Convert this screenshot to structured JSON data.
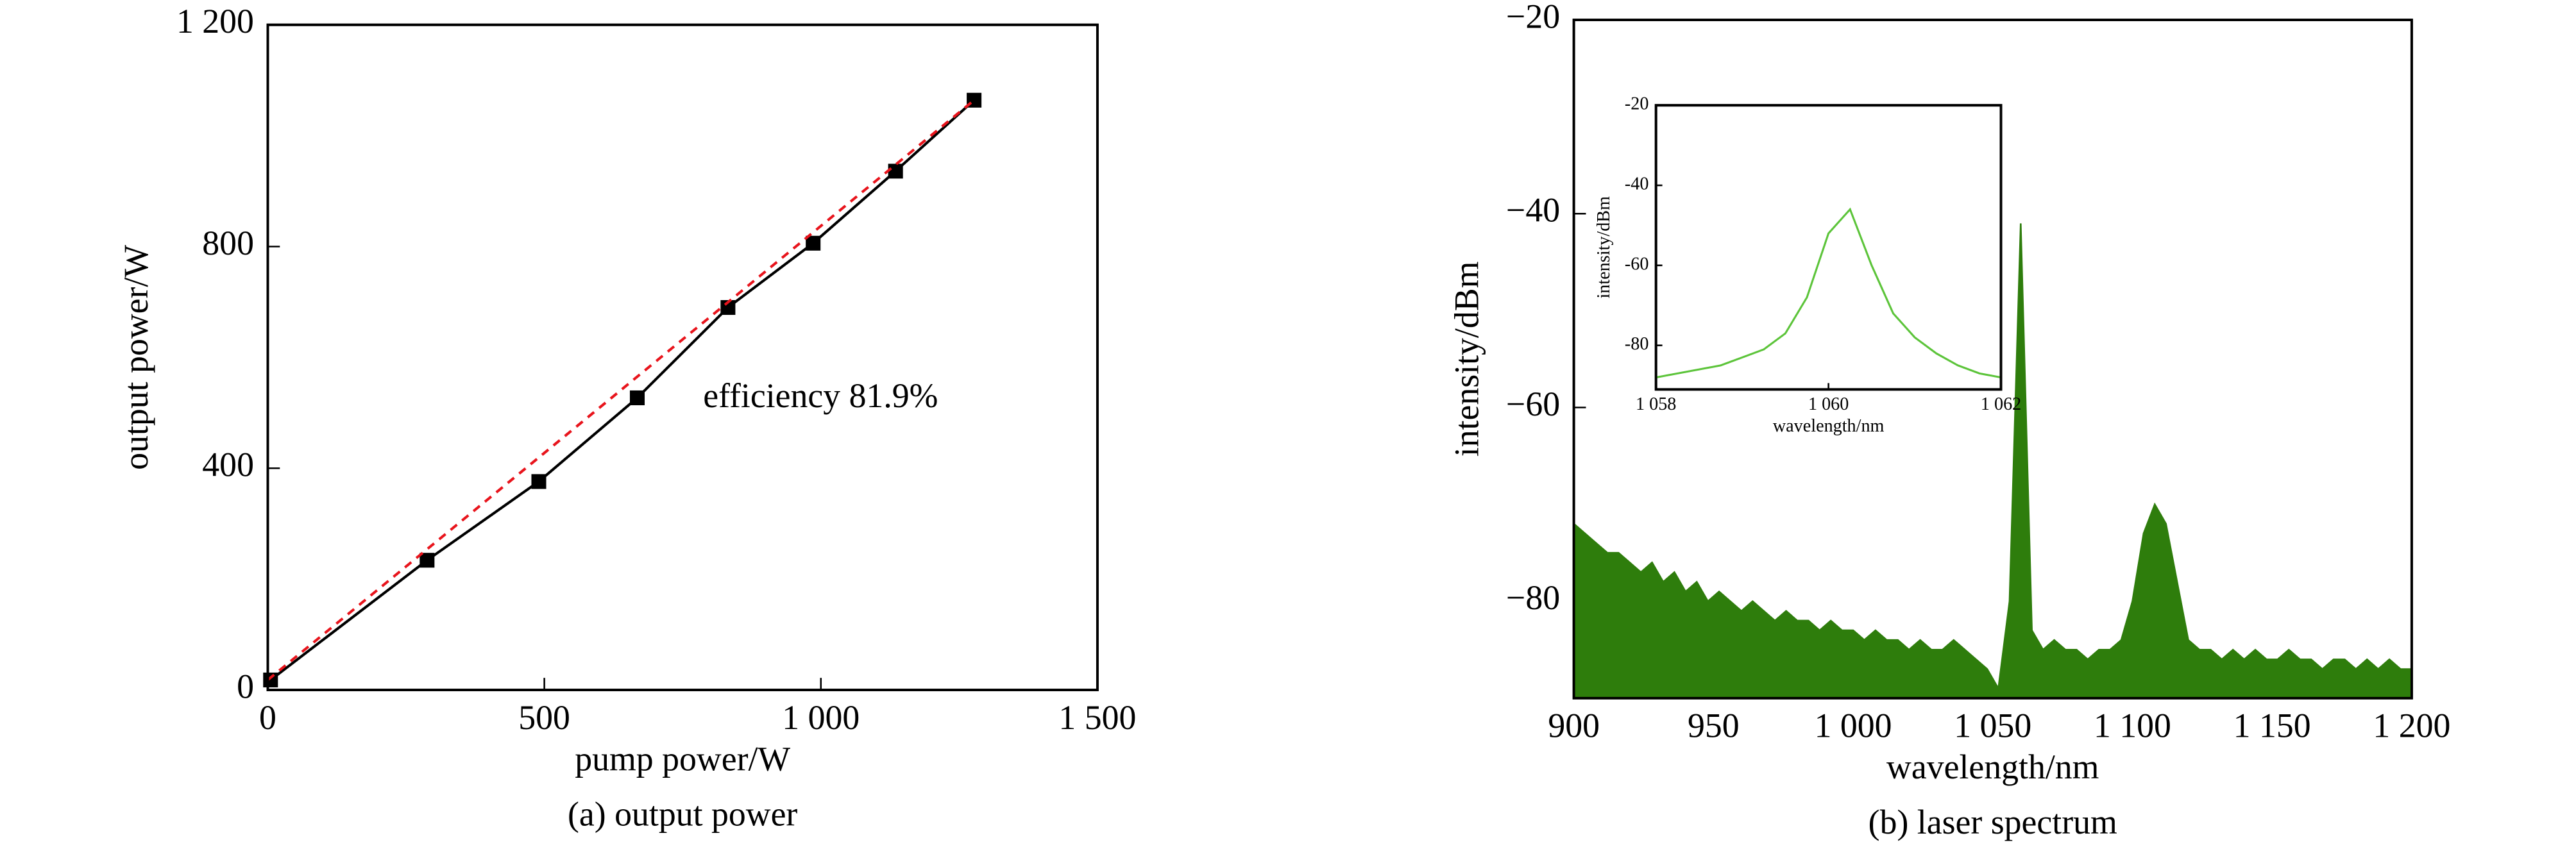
{
  "chart_data": [
    {
      "type": "line",
      "caption": "(a) output power",
      "xlabel": "pump power/W",
      "ylabel": "output power/W",
      "annotation": "efficiency 81.9%",
      "xlim": [
        0,
        1500
      ],
      "ylim": [
        0,
        1200
      ],
      "xticks": [
        0,
        500,
        {
          "value": 1000,
          "label": "1 000"
        },
        {
          "value": 1500,
          "label": "1 500"
        }
      ],
      "yticks": [
        0,
        400,
        800,
        {
          "value": 1200,
          "label": "1 200"
        }
      ],
      "series": [
        {
          "x": [
            5,
            288,
            490,
            668,
            832,
            986,
            1135,
            1277
          ],
          "values": [
            18,
            234,
            376,
            527,
            690,
            806,
            936,
            1064
          ],
          "color": "#000000",
          "marker": "square"
        },
        {
          "x": [
            0,
            1277
          ],
          "values": [
            18,
            1064
          ],
          "color": "#e8141c",
          "dash": true
        }
      ]
    },
    {
      "type": "area",
      "caption": "(b) laser spectrum",
      "xlabel": "wavelength/nm",
      "ylabel": "intensity/dBm",
      "color": "#2e7d0c",
      "xlim": [
        900,
        1200
      ],
      "ylim": [
        -90,
        -20
      ],
      "xticks": [
        900,
        950,
        {
          "value": 1000,
          "label": "1 000"
        },
        {
          "value": 1050,
          "label": "1 050"
        },
        {
          "value": 1100,
          "label": "1 100"
        },
        {
          "value": 1150,
          "label": "1 150"
        },
        {
          "value": 1200,
          "label": "1 200"
        }
      ],
      "yticks": [
        {
          "value": -20,
          "label": "−20"
        },
        {
          "value": -40,
          "label": "−40"
        },
        {
          "value": -60,
          "label": "−60"
        },
        {
          "value": -80,
          "label": "−80"
        }
      ],
      "x": [
        900,
        904,
        908,
        912,
        916,
        920,
        924,
        928,
        932,
        936,
        940,
        944,
        948,
        952,
        956,
        960,
        964,
        968,
        972,
        976,
        980,
        984,
        988,
        992,
        996,
        1000,
        1004,
        1008,
        1012,
        1016,
        1020,
        1024,
        1028,
        1032,
        1036,
        1040,
        1044,
        1048,
        1052,
        1056,
        1060,
        1064,
        1068,
        1072,
        1076,
        1080,
        1084,
        1088,
        1092,
        1096,
        1100,
        1104,
        1108,
        1112,
        1116,
        1120,
        1124,
        1128,
        1132,
        1136,
        1140,
        1144,
        1148,
        1152,
        1156,
        1160,
        1164,
        1168,
        1172,
        1176,
        1180,
        1184,
        1188,
        1192,
        1196,
        1200
      ],
      "values": [
        -72,
        -73,
        -74,
        -75,
        -75,
        -76,
        -77,
        -76,
        -78,
        -77,
        -79,
        -78,
        -80,
        -79,
        -80,
        -81,
        -80,
        -81,
        -82,
        -81,
        -82,
        -82,
        -83,
        -82,
        -83,
        -83,
        -84,
        -83,
        -84,
        -84,
        -85,
        -84,
        -85,
        -85,
        -84,
        -85,
        -86,
        -87,
        -89,
        -80,
        -41,
        -83,
        -85,
        -84,
        -85,
        -85,
        -86,
        -85,
        -85,
        -84,
        -80,
        -73,
        -70,
        -72,
        -78,
        -84,
        -85,
        -85,
        -86,
        -85,
        -86,
        -85,
        -86,
        -86,
        -85,
        -86,
        -86,
        -87,
        -86,
        -86,
        -87,
        -86,
        -87,
        -86,
        -87,
        -87
      ],
      "inset": {
        "type": "line",
        "xlabel": "wavelength/nm",
        "ylabel": "intensity/dBm",
        "color": "#5cc43a",
        "xlim": [
          1058,
          1062
        ],
        "ylim": [
          -91,
          -20
        ],
        "xticks": [
          {
            "value": 1058,
            "label": "1 058"
          },
          {
            "value": 1060,
            "label": "1 060"
          },
          {
            "value": 1062,
            "label": "1 062"
          }
        ],
        "yticks": [
          {
            "value": -20,
            "label": "-20"
          },
          {
            "value": -40,
            "label": "-40"
          },
          {
            "value": -60,
            "label": "-60"
          },
          {
            "value": -80,
            "label": "-80"
          }
        ],
        "x": [
          1058,
          1058.25,
          1058.5,
          1058.75,
          1059,
          1059.25,
          1059.5,
          1059.75,
          1060,
          1060.25,
          1060.5,
          1060.75,
          1061,
          1061.25,
          1061.5,
          1061.75,
          1062
        ],
        "values": [
          -88,
          -87,
          -86,
          -85,
          -83,
          -81,
          -77,
          -68,
          -52,
          -46,
          -60,
          -72,
          -78,
          -82,
          -85,
          -87,
          -88
        ]
      }
    }
  ]
}
